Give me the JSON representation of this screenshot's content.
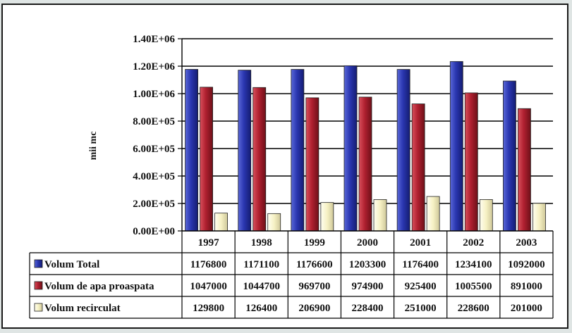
{
  "chart_data": {
    "type": "bar",
    "ylabel": "mii mc",
    "ylim": [
      0,
      1400000
    ],
    "yticks": [
      "0.00E+00",
      "2.00E+05",
      "4.00E+05",
      "6.00E+05",
      "8.00E+05",
      "1.00E+06",
      "1.20E+06",
      "1.40E+06"
    ],
    "ytick_values": [
      0,
      200000,
      400000,
      600000,
      800000,
      1000000,
      1200000,
      1400000
    ],
    "grid": true,
    "legend_placement": "data-table",
    "categories": [
      "1997",
      "1998",
      "1999",
      "2000",
      "2001",
      "2002",
      "2003"
    ],
    "series": [
      {
        "name": "Volum Total",
        "color": "#1f2a9e",
        "values": [
          1176800,
          1171100,
          1176600,
          1203300,
          1176400,
          1234100,
          1092000
        ],
        "labels": [
          "1176800",
          "1171100",
          "1176600",
          "1203300",
          "1176400",
          "1234100",
          "1092000"
        ]
      },
      {
        "name": "Volum de apa proaspata",
        "color": "#b01e2a",
        "values": [
          1047000,
          1044700,
          969700,
          974900,
          925400,
          1005500,
          891000
        ],
        "labels": [
          "1047000",
          "1044700",
          "969700",
          "974900",
          "925400",
          "1005500",
          "891000"
        ]
      },
      {
        "name": "Volum recirculat",
        "color": "#f6f1c4",
        "values": [
          129800,
          126400,
          206900,
          228400,
          251000,
          228600,
          201000
        ],
        "labels": [
          "129800",
          "126400",
          "206900",
          "228400",
          "251000",
          "228600",
          "201000"
        ]
      }
    ]
  }
}
